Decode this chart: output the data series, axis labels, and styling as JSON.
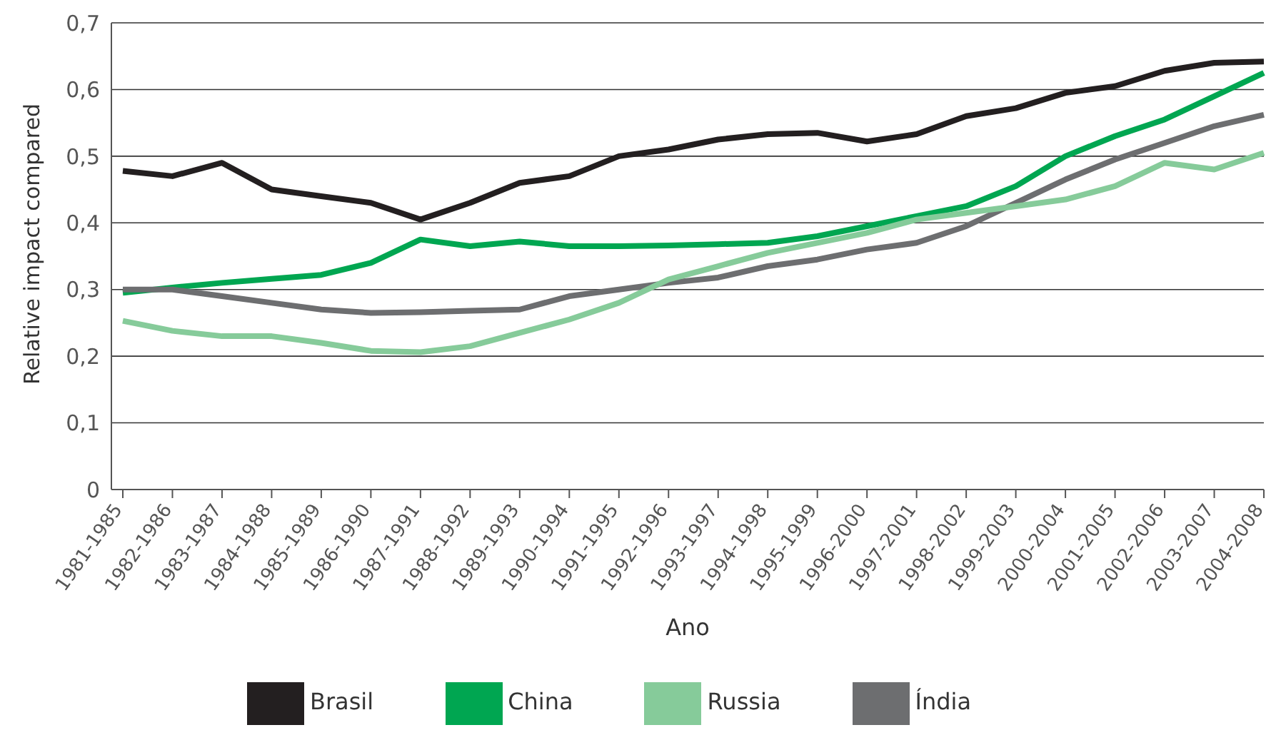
{
  "chart_data": {
    "type": "line",
    "xlabel": "Ano",
    "ylabel": "Relative impact compared",
    "categories": [
      "1981-1985",
      "1982-1986",
      "1983-1987",
      "1984-1988",
      "1985-1989",
      "1986-1990",
      "1987-1991",
      "1988-1992",
      "1989-1993",
      "1990-1994",
      "1991-1995",
      "1992-1996",
      "1993-1997",
      "1994-1998",
      "1995-1999",
      "1996-2000",
      "1997-2001",
      "1998-2002",
      "1999-2003",
      "2000-2004",
      "2001-2005",
      "2002-2006",
      "2003-2007",
      "2004-2008"
    ],
    "series": [
      {
        "name": "Brasil",
        "color": "#231f20",
        "values": [
          0.478,
          0.47,
          0.49,
          0.45,
          0.44,
          0.43,
          0.405,
          0.43,
          0.46,
          0.47,
          0.5,
          0.51,
          0.525,
          0.533,
          0.535,
          0.522,
          0.533,
          0.56,
          0.572,
          0.595,
          0.605,
          0.628,
          0.64,
          0.642
        ]
      },
      {
        "name": "China",
        "color": "#00a651",
        "values": [
          0.295,
          0.303,
          0.31,
          0.316,
          0.322,
          0.34,
          0.375,
          0.365,
          0.372,
          0.365,
          0.365,
          0.366,
          0.368,
          0.37,
          0.38,
          0.395,
          0.41,
          0.425,
          0.455,
          0.5,
          0.53,
          0.555,
          0.59,
          0.625
        ]
      },
      {
        "name": "Índia",
        "color": "#6d6e70",
        "values": [
          0.3,
          0.3,
          0.29,
          0.28,
          0.27,
          0.265,
          0.266,
          0.268,
          0.27,
          0.29,
          0.3,
          0.31,
          0.318,
          0.335,
          0.345,
          0.36,
          0.37,
          0.395,
          0.43,
          0.465,
          0.495,
          0.52,
          0.545,
          0.562
        ]
      },
      {
        "name": "Russia",
        "color": "#86cb9a",
        "values": [
          0.253,
          0.238,
          0.23,
          0.23,
          0.22,
          0.208,
          0.206,
          0.215,
          0.235,
          0.255,
          0.28,
          0.315,
          0.335,
          0.355,
          0.37,
          0.385,
          0.405,
          0.415,
          0.425,
          0.435,
          0.455,
          0.49,
          0.48,
          0.505
        ]
      }
    ],
    "ylim": [
      0,
      0.7
    ],
    "yticks": [
      0,
      {
        "value": 0.1,
        "label": "0,1"
      },
      {
        "value": 0.2,
        "label": "0,2"
      },
      {
        "value": 0.3,
        "label": "0,3"
      },
      {
        "value": 0.4,
        "label": "0,4"
      },
      {
        "value": 0.5,
        "label": "0,5"
      },
      {
        "value": 0.6,
        "label": "0,6"
      },
      {
        "value": 0.7,
        "label": "0,7"
      }
    ],
    "grid": "y",
    "legend": "bottom",
    "marker": "none",
    "line_style": "solid"
  }
}
